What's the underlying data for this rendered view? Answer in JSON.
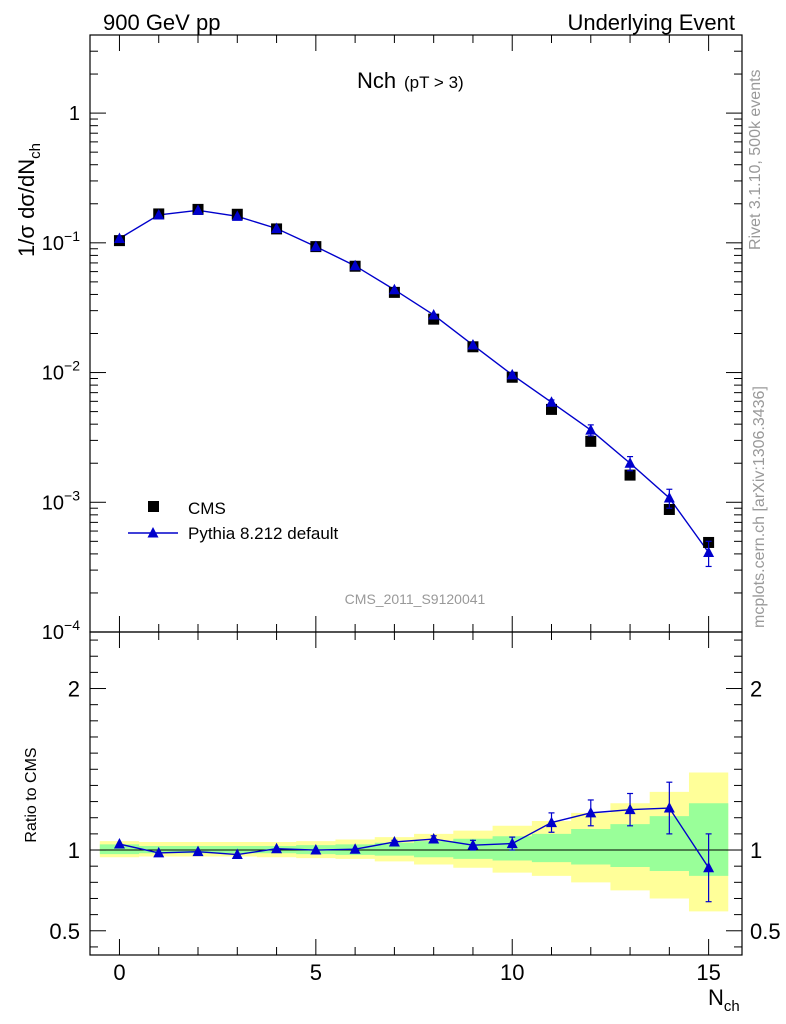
{
  "header": {
    "left_title": "900 GeV pp",
    "right_title": "Underlying Event"
  },
  "side_text": {
    "rivet": "Rivet 3.1.10,  500k events",
    "mcplots": "mcplots.cern.ch [arXiv:1306.3436]"
  },
  "chart_data": [
    {
      "type": "scatter",
      "panel": "main",
      "title": "Nch",
      "title_sub": "(pT >  3)",
      "watermark": "CMS_2011_S9120041",
      "ylabel": "1/σ dσ/dN",
      "ylabel_sub": "ch",
      "yscale": "log",
      "ylim": [
        0.0001,
        4
      ],
      "xlim": [
        -0.75,
        15.85
      ],
      "y_tick_labels": [
        {
          "base": "10",
          "exp": "−4",
          "value": 0.0001
        },
        {
          "base": "10",
          "exp": "−3",
          "value": 0.001
        },
        {
          "base": "10",
          "exp": "−2",
          "value": 0.01
        },
        {
          "base": "10",
          "exp": "−1",
          "value": 0.1
        },
        {
          "base": "1",
          "exp": "",
          "value": 1
        }
      ],
      "legend_position": "bottom-left",
      "series": [
        {
          "name": "CMS",
          "marker": "square",
          "color": "#000000",
          "x": [
            0,
            1,
            2,
            3,
            4,
            5,
            6,
            7,
            8,
            9,
            10,
            11,
            12,
            13,
            14,
            15
          ],
          "y": [
            0.104,
            0.167,
            0.181,
            0.166,
            0.128,
            0.0935,
            0.066,
            0.0415,
            0.0258,
            0.0158,
            0.0092,
            0.0052,
            0.00295,
            0.00162,
            0.00088,
            0.00049
          ]
        },
        {
          "name": "Pythia 8.212 default",
          "marker": "triangle",
          "line": true,
          "color": "#0000cc",
          "x": [
            0,
            1,
            2,
            3,
            4,
            5,
            6,
            7,
            8,
            9,
            10,
            11,
            12,
            13,
            14,
            15
          ],
          "y": [
            0.108,
            0.164,
            0.178,
            0.16,
            0.129,
            0.0935,
            0.0665,
            0.0435,
            0.0278,
            0.0163,
            0.0096,
            0.0059,
            0.0036,
            0.002,
            0.00108,
            0.00041
          ],
          "yerr": [
            0.001,
            0.001,
            0.001,
            0.001,
            0.001,
            0.0008,
            0.0005,
            0.0004,
            0.0003,
            0.0003,
            0.0003,
            0.00025,
            0.00035,
            0.00025,
            0.00018,
            9e-05
          ]
        }
      ]
    },
    {
      "type": "scatter",
      "panel": "ratio",
      "ylabel": "Ratio to CMS",
      "xlabel": "N",
      "xlabel_sub": "ch",
      "ylim": [
        0.35,
        2.35
      ],
      "xlim": [
        -0.75,
        15.85
      ],
      "x_ticks": [
        0,
        5,
        10,
        15
      ],
      "y_ticks": [
        0.5,
        1,
        2
      ],
      "reference_line": 1,
      "bands": {
        "green_color": "#99ff99",
        "yellow_color": "#ffff99",
        "x": [
          0,
          1,
          2,
          3,
          4,
          5,
          6,
          7,
          8,
          9,
          10,
          11,
          12,
          13,
          14,
          15
        ],
        "green_low": [
          0.975,
          0.98,
          0.98,
          0.98,
          0.98,
          0.975,
          0.97,
          0.965,
          0.955,
          0.945,
          0.935,
          0.925,
          0.91,
          0.895,
          0.87,
          0.84
        ],
        "green_high": [
          1.035,
          1.025,
          1.025,
          1.025,
          1.025,
          1.03,
          1.035,
          1.045,
          1.055,
          1.07,
          1.085,
          1.1,
          1.13,
          1.16,
          1.21,
          1.29
        ],
        "yellow_low": [
          0.955,
          0.96,
          0.96,
          0.96,
          0.955,
          0.95,
          0.945,
          0.93,
          0.91,
          0.89,
          0.86,
          0.84,
          0.8,
          0.75,
          0.7,
          0.62
        ],
        "yellow_high": [
          1.055,
          1.05,
          1.05,
          1.05,
          1.05,
          1.055,
          1.065,
          1.08,
          1.1,
          1.12,
          1.15,
          1.18,
          1.23,
          1.29,
          1.36,
          1.48
        ]
      },
      "series": [
        {
          "name": "Pythia 8.212 default",
          "marker": "triangle",
          "color": "#0000cc",
          "x": [
            0,
            1,
            2,
            3,
            4,
            5,
            6,
            7,
            8,
            9,
            10,
            11,
            12,
            13,
            14,
            15
          ],
          "y": [
            1.037,
            0.982,
            0.99,
            0.972,
            1.008,
            1.0,
            1.005,
            1.05,
            1.068,
            1.03,
            1.04,
            1.17,
            1.23,
            1.25,
            1.26,
            0.89
          ],
          "yerr": [
            0.005,
            0.005,
            0.005,
            0.005,
            0.005,
            0.005,
            0.005,
            0.01,
            0.02,
            0.03,
            0.04,
            0.06,
            0.08,
            0.1,
            0.16,
            0.21
          ]
        }
      ]
    }
  ]
}
